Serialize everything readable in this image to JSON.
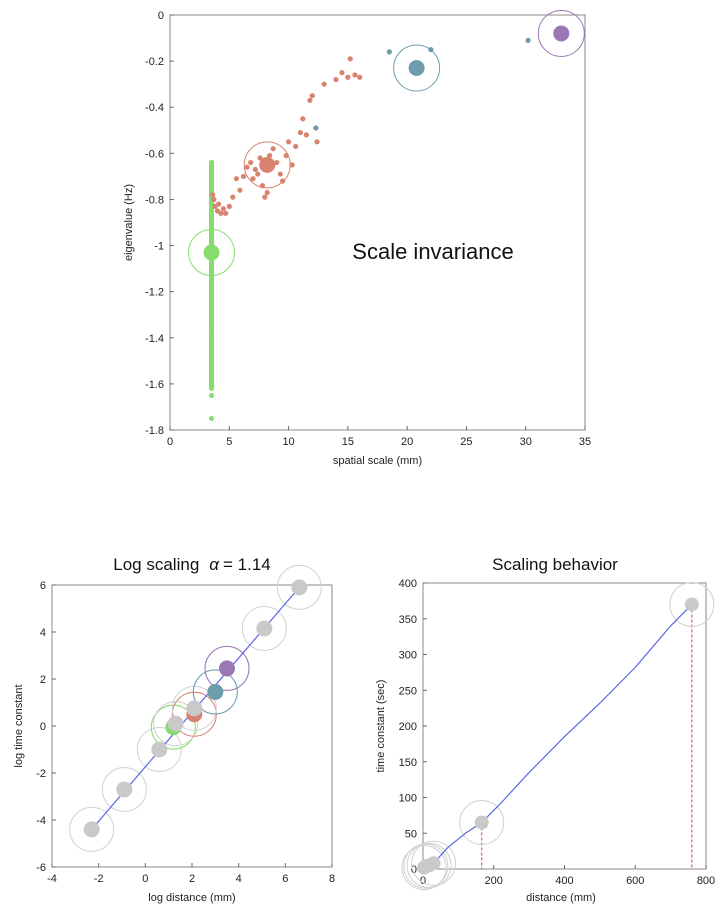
{
  "chart_data": [
    {
      "type": "scatter",
      "title": "",
      "annotation": "Scale invariance",
      "xlabel": "spatial scale (mm)",
      "ylabel": "eigenvalue (Hz)",
      "xlim": [
        0,
        35
      ],
      "ylim": [
        -1.8,
        0
      ],
      "xticks": [
        0,
        5,
        10,
        15,
        20,
        25,
        30,
        35
      ],
      "yticks": [
        0,
        -0.2,
        -0.4,
        -0.6,
        -0.8,
        -1,
        -1.2,
        -1.4,
        -1.6,
        -1.8
      ],
      "grid": false,
      "colors": {
        "green": "#86dd6b",
        "red": "#d9826f",
        "blue": "#6d9cad",
        "purple": "#9a77b5"
      },
      "series": [
        {
          "color": "green",
          "points": [
            [
              3.5,
              -0.64
            ],
            [
              3.5,
              -0.67
            ],
            [
              3.5,
              -0.7
            ],
            [
              3.5,
              -0.73
            ],
            [
              3.5,
              -0.76
            ],
            [
              3.5,
              -0.79
            ],
            [
              3.5,
              -0.82
            ],
            [
              3.5,
              -0.86
            ],
            [
              3.5,
              -0.9
            ],
            [
              3.5,
              -0.94
            ],
            [
              3.5,
              -0.98
            ],
            [
              3.5,
              -1.02
            ],
            [
              3.5,
              -1.06
            ],
            [
              3.5,
              -1.1
            ],
            [
              3.5,
              -1.14
            ],
            [
              3.5,
              -1.18
            ],
            [
              3.5,
              -1.22
            ],
            [
              3.5,
              -1.26
            ],
            [
              3.5,
              -1.3
            ],
            [
              3.5,
              -1.34
            ],
            [
              3.5,
              -1.38
            ],
            [
              3.5,
              -1.42
            ],
            [
              3.5,
              -1.46
            ],
            [
              3.5,
              -1.5
            ],
            [
              3.5,
              -1.53
            ],
            [
              3.5,
              -1.57
            ],
            [
              3.5,
              -1.6
            ],
            [
              3.5,
              -1.65
            ],
            [
              3.5,
              -1.75
            ]
          ],
          "center": {
            "x": 3.5,
            "y": -1.03
          }
        },
        {
          "color": "red",
          "points": [
            [
              3.6,
              -0.78
            ],
            [
              3.7,
              -0.8
            ],
            [
              3.8,
              -0.83
            ],
            [
              4.0,
              -0.85
            ],
            [
              4.1,
              -0.82
            ],
            [
              4.3,
              -0.86
            ],
            [
              4.5,
              -0.84
            ],
            [
              4.7,
              -0.86
            ],
            [
              5.0,
              -0.83
            ],
            [
              5.3,
              -0.79
            ],
            [
              5.6,
              -0.71
            ],
            [
              5.9,
              -0.76
            ],
            [
              6.2,
              -0.7
            ],
            [
              6.5,
              -0.66
            ],
            [
              6.8,
              -0.64
            ],
            [
              7.0,
              -0.71
            ],
            [
              7.2,
              -0.67
            ],
            [
              7.4,
              -0.69
            ],
            [
              7.6,
              -0.62
            ],
            [
              7.8,
              -0.74
            ],
            [
              8.0,
              -0.79
            ],
            [
              8.2,
              -0.77
            ],
            [
              8.4,
              -0.61
            ],
            [
              8.7,
              -0.58
            ],
            [
              9.0,
              -0.64
            ],
            [
              9.3,
              -0.69
            ],
            [
              9.5,
              -0.72
            ],
            [
              9.8,
              -0.61
            ],
            [
              10.0,
              -0.55
            ],
            [
              10.3,
              -0.65
            ],
            [
              10.6,
              -0.57
            ],
            [
              11.0,
              -0.51
            ],
            [
              11.2,
              -0.45
            ],
            [
              11.5,
              -0.52
            ],
            [
              11.8,
              -0.37
            ],
            [
              12.0,
              -0.35
            ],
            [
              12.4,
              -0.55
            ],
            [
              13.0,
              -0.3
            ],
            [
              14.0,
              -0.28
            ],
            [
              14.5,
              -0.25
            ],
            [
              15.0,
              -0.27
            ],
            [
              15.2,
              -0.19
            ],
            [
              15.6,
              -0.26
            ],
            [
              16.0,
              -0.27
            ]
          ],
          "center": {
            "x": 8.2,
            "y": -0.65
          }
        },
        {
          "color": "blue",
          "points": [
            [
              12.3,
              -0.49
            ],
            [
              18.5,
              -0.16
            ],
            [
              22.0,
              -0.15
            ],
            [
              30.2,
              -0.11
            ]
          ],
          "center": {
            "x": 20.8,
            "y": -0.23
          }
        },
        {
          "color": "purple",
          "points": [],
          "center": {
            "x": 33.0,
            "y": -0.08
          }
        }
      ]
    },
    {
      "type": "line",
      "title": "Log scaling",
      "title_symbol": "α",
      "title_value": "= 1.14",
      "xlabel": "log distance (mm)",
      "ylabel": "log time constant",
      "xlim": [
        -4,
        8
      ],
      "ylim": [
        -6,
        6
      ],
      "xticks": [
        -4,
        -2,
        0,
        2,
        4,
        6,
        8
      ],
      "yticks": [
        6,
        4,
        2,
        0,
        -2,
        -4,
        -6
      ],
      "grid": false,
      "fit_line": {
        "x": [
          -2.3,
          6.6
        ],
        "y": [
          -4.4,
          5.9
        ],
        "color": "#5b67e6"
      },
      "points": [
        {
          "x": -2.3,
          "y": -4.4,
          "color": "gray"
        },
        {
          "x": -0.9,
          "y": -2.7,
          "color": "gray"
        },
        {
          "x": 0.6,
          "y": -1.0,
          "color": "gray"
        },
        {
          "x": 1.2,
          "y": -0.05,
          "color": "green"
        },
        {
          "x": 1.3,
          "y": 0.1,
          "color": "gray"
        },
        {
          "x": 2.1,
          "y": 0.5,
          "color": "red"
        },
        {
          "x": 2.1,
          "y": 0.75,
          "color": "gray"
        },
        {
          "x": 3.0,
          "y": 1.45,
          "color": "blue"
        },
        {
          "x": 3.5,
          "y": 2.45,
          "color": "purple"
        },
        {
          "x": 5.1,
          "y": 4.15,
          "color": "gray"
        },
        {
          "x": 6.6,
          "y": 5.9,
          "color": "gray"
        }
      ]
    },
    {
      "type": "line",
      "title": "Scaling behavior",
      "xlabel": "distance (mm)",
      "ylabel": "time constant (sec)",
      "xlim": [
        0,
        800
      ],
      "ylim": [
        0,
        400
      ],
      "xticks": [
        0,
        200,
        400,
        600,
        800
      ],
      "yticks": [
        400,
        350,
        300,
        250,
        200,
        150,
        100,
        50,
        0
      ],
      "grid": false,
      "curve": {
        "x": [
          3,
          8,
          17,
          30,
          70,
          120,
          166,
          220,
          300,
          400,
          500,
          600,
          700,
          760
        ],
        "y": [
          2,
          4,
          5,
          8,
          30,
          50,
          65,
          92,
          135,
          185,
          232,
          282,
          340,
          370
        ],
        "color": "#5b67e6"
      },
      "points": [
        {
          "x": 3,
          "y": 2
        },
        {
          "x": 8,
          "y": 4
        },
        {
          "x": 17,
          "y": 5
        },
        {
          "x": 30,
          "y": 8
        },
        {
          "x": 166,
          "y": 65
        },
        {
          "x": 760,
          "y": 370
        }
      ]
    }
  ]
}
